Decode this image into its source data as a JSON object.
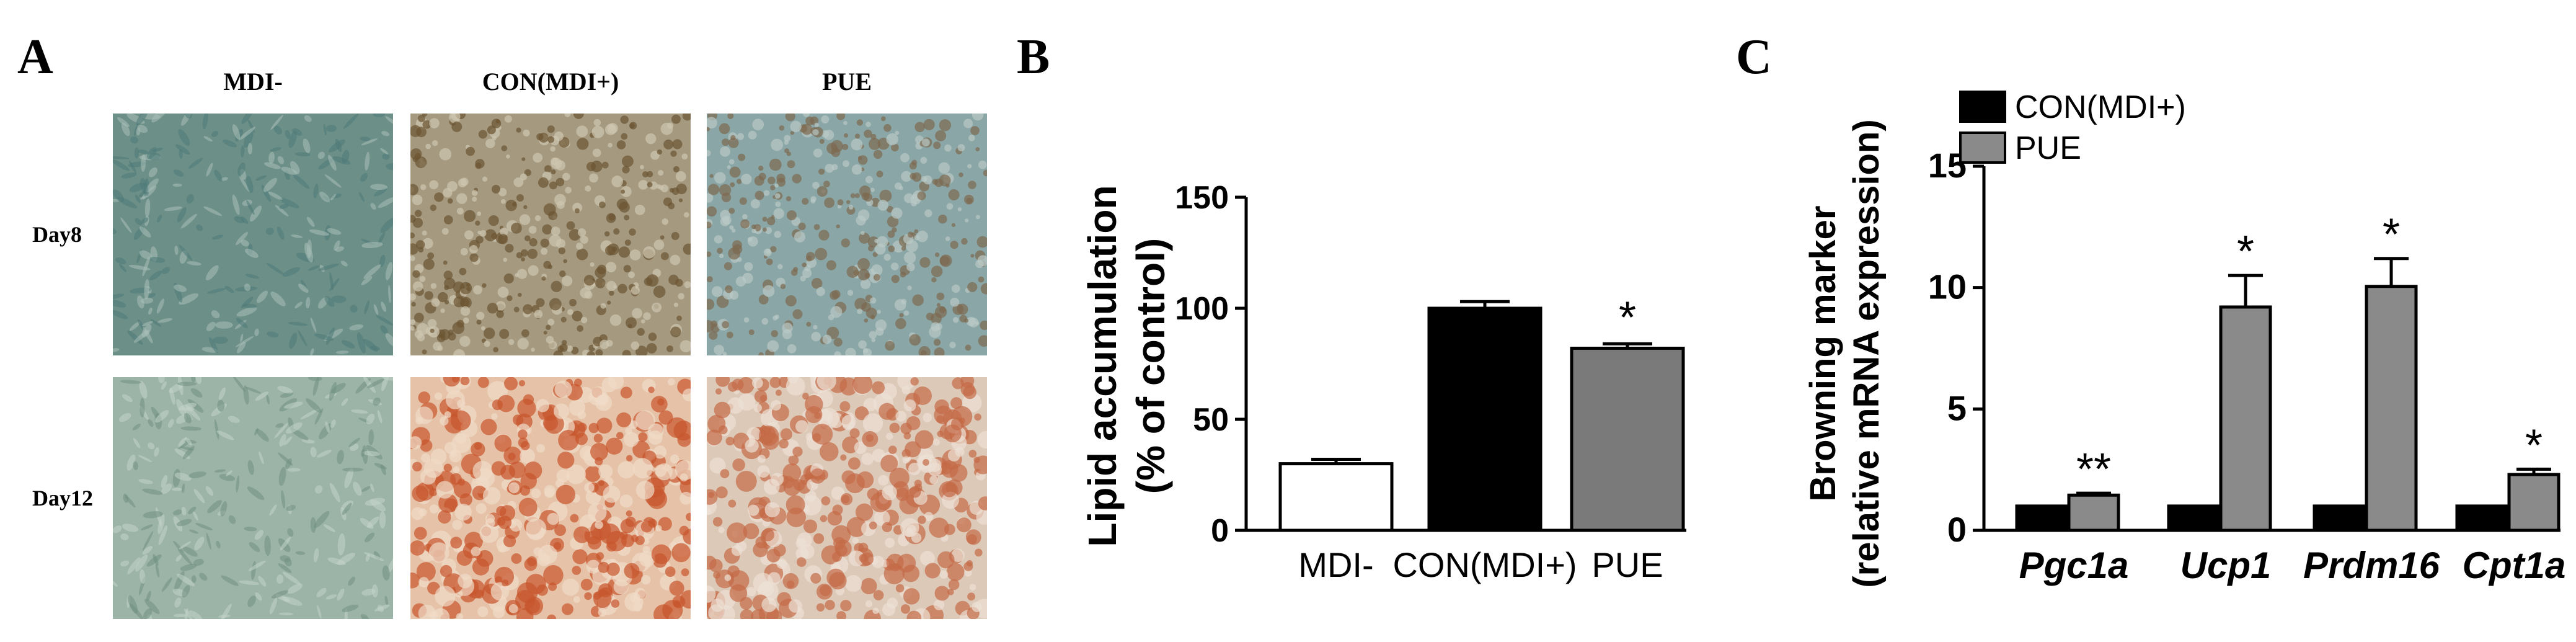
{
  "panels": {
    "a": {
      "letter": "A",
      "column_headers": [
        "MDI-",
        "CON(MDI+)",
        "PUE"
      ],
      "row_labels": [
        "Day8",
        "Day12"
      ],
      "micrographs": [
        {
          "row": "Day8",
          "column": "MDI-",
          "stain": "none",
          "colors": [
            "#6c8f87",
            "#4f7a78",
            "#a9bfb8"
          ]
        },
        {
          "row": "Day8",
          "column": "CON(MDI+)",
          "stain": "lipid",
          "colors": [
            "#a59a80",
            "#6b5432",
            "#cfc6b0"
          ]
        },
        {
          "row": "Day8",
          "column": "PUE",
          "stain": "lipid",
          "colors": [
            "#8aa6a6",
            "#7d6a50",
            "#b9c9c6"
          ]
        },
        {
          "row": "Day12",
          "column": "MDI-",
          "stain": "none",
          "colors": [
            "#9cb3a7",
            "#6f8f82",
            "#c5d3cb"
          ]
        },
        {
          "row": "Day12",
          "column": "CON(MDI+)",
          "stain": "oil-red",
          "colors": [
            "#e6c3a8",
            "#c8552c",
            "#f0dcc8"
          ]
        },
        {
          "row": "Day12",
          "column": "PUE",
          "stain": "oil-red",
          "colors": [
            "#dcc9b8",
            "#c46a46",
            "#ece0d4"
          ]
        }
      ]
    },
    "b": {
      "letter": "B"
    },
    "c": {
      "letter": "C"
    }
  },
  "chart_data": [
    {
      "id": "b",
      "type": "bar",
      "title": "",
      "ylabel": [
        "Lipid accumulation",
        "(% of control)"
      ],
      "xlabel": "",
      "categories": [
        "MDI-",
        "CON(MDI+)",
        "PUE"
      ],
      "values": [
        30,
        100,
        82
      ],
      "errors": [
        2,
        3,
        2
      ],
      "fills": [
        "#ffffff",
        "#000000",
        "#7a7a7a"
      ],
      "ylim": [
        0,
        150
      ],
      "yticks": [
        0,
        50,
        100,
        150
      ],
      "annotations": [
        "",
        "",
        "*"
      ],
      "grid": false
    },
    {
      "id": "c",
      "type": "bar",
      "title": "",
      "ylabel": [
        "Browning marker",
        "(relative mRNA expression)"
      ],
      "xlabel": "",
      "categories": [
        "Pgc1a",
        "Ucp1",
        "Prdm16",
        "Cpt1a"
      ],
      "series": [
        {
          "name": "CON(MDI+)",
          "values": [
            1,
            1,
            1,
            1
          ],
          "errors": [
            0,
            0,
            0,
            0
          ],
          "color": "#000000",
          "annotations": [
            "",
            "",
            "",
            ""
          ]
        },
        {
          "name": "PUE",
          "values": [
            1.45,
            9.2,
            10.05,
            2.3
          ],
          "errors": [
            0.08,
            1.3,
            1.15,
            0.22
          ],
          "color": "#8a8a8a",
          "annotations": [
            "**",
            "*",
            "*",
            "*"
          ]
        }
      ],
      "ylim": [
        0,
        15
      ],
      "yticks": [
        0,
        5,
        10,
        15
      ],
      "legend": "top-left",
      "grid": false
    }
  ]
}
